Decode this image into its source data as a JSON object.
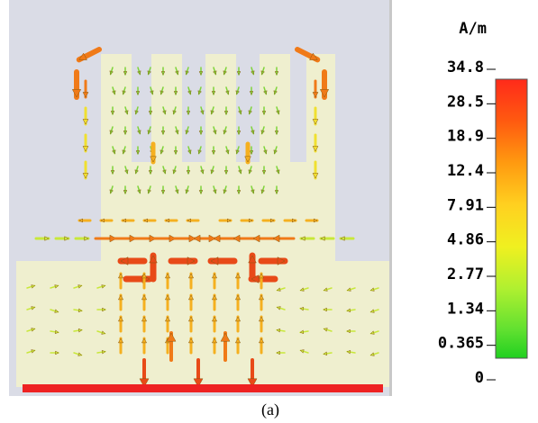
{
  "unit": "A/m",
  "colorbar": {
    "labels": [
      "34.8",
      "28.5",
      "18.9",
      "12.4",
      "7.91",
      "4.86",
      "2.77",
      "1.34",
      "0.365",
      "0"
    ]
  },
  "caption": "(a)"
}
